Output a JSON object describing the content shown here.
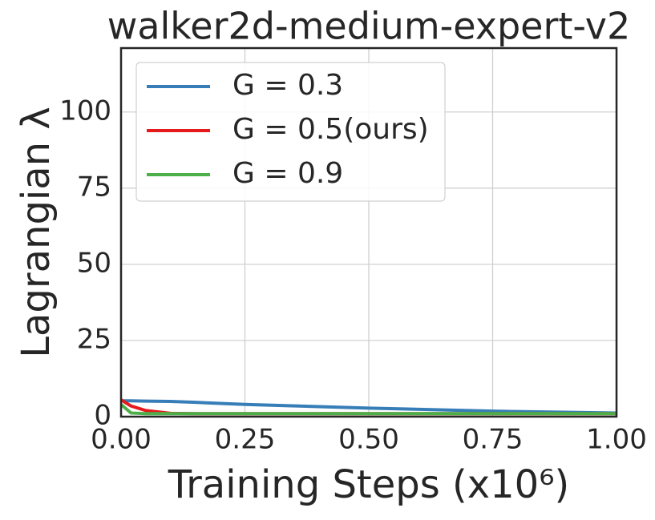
{
  "chart_data": {
    "type": "line",
    "title": "walker2d-medium-expert-v2",
    "xlabel": "Training Steps (x10⁶)",
    "ylabel": "Lagrangian λ",
    "x": [
      0,
      0.02,
      0.05,
      0.1,
      0.15,
      0.25,
      0.5,
      0.75,
      1.0
    ],
    "series": [
      {
        "name": "G = 0.3",
        "color": "#377eb8",
        "values": [
          5.2,
          5.2,
          5.1,
          5.0,
          4.7,
          4.0,
          2.8,
          1.8,
          1.2
        ]
      },
      {
        "name": "G = 0.5(ours)",
        "color": "#e41a1c",
        "values": [
          5.5,
          3.5,
          2.0,
          1.1,
          1.0,
          1.0,
          1.0,
          1.0,
          1.0
        ]
      },
      {
        "name": "G = 0.9",
        "color": "#4daf4a",
        "values": [
          4.0,
          1.2,
          1.0,
          1.0,
          1.0,
          1.0,
          1.0,
          1.0,
          1.0
        ]
      }
    ],
    "xlim": [
      0,
      1.0
    ],
    "xticks": [
      {
        "value": 0,
        "label": "0.00"
      },
      {
        "value": 0.25,
        "label": "0.25"
      },
      {
        "value": 0.5,
        "label": "0.50"
      },
      {
        "value": 0.75,
        "label": "0.75"
      },
      {
        "value": 1.0,
        "label": "1.00"
      }
    ],
    "ylim": [
      0,
      121
    ],
    "yticks": [
      0,
      25,
      50,
      75,
      100
    ],
    "grid": true,
    "legend": "upper left"
  }
}
